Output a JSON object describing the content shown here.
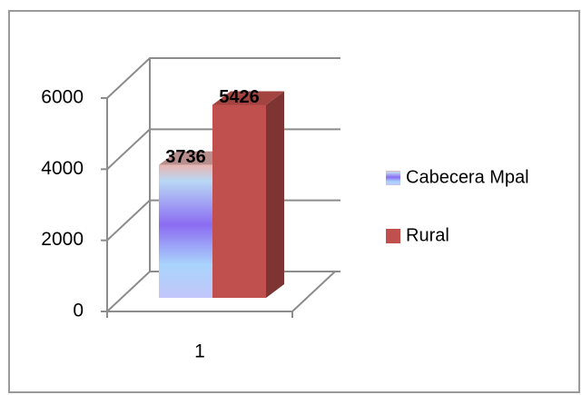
{
  "chart_data": {
    "type": "bar",
    "categories": [
      "1"
    ],
    "series": [
      {
        "name": "Cabecera Mpal",
        "color": "#8b6cf2",
        "values": [
          3736
        ]
      },
      {
        "name": "Rural",
        "color": "#c0504d",
        "values": [
          5426
        ]
      }
    ],
    "ylim": [
      0,
      6000
    ],
    "yticks": [
      0,
      2000,
      4000,
      6000
    ],
    "grid": true
  }
}
